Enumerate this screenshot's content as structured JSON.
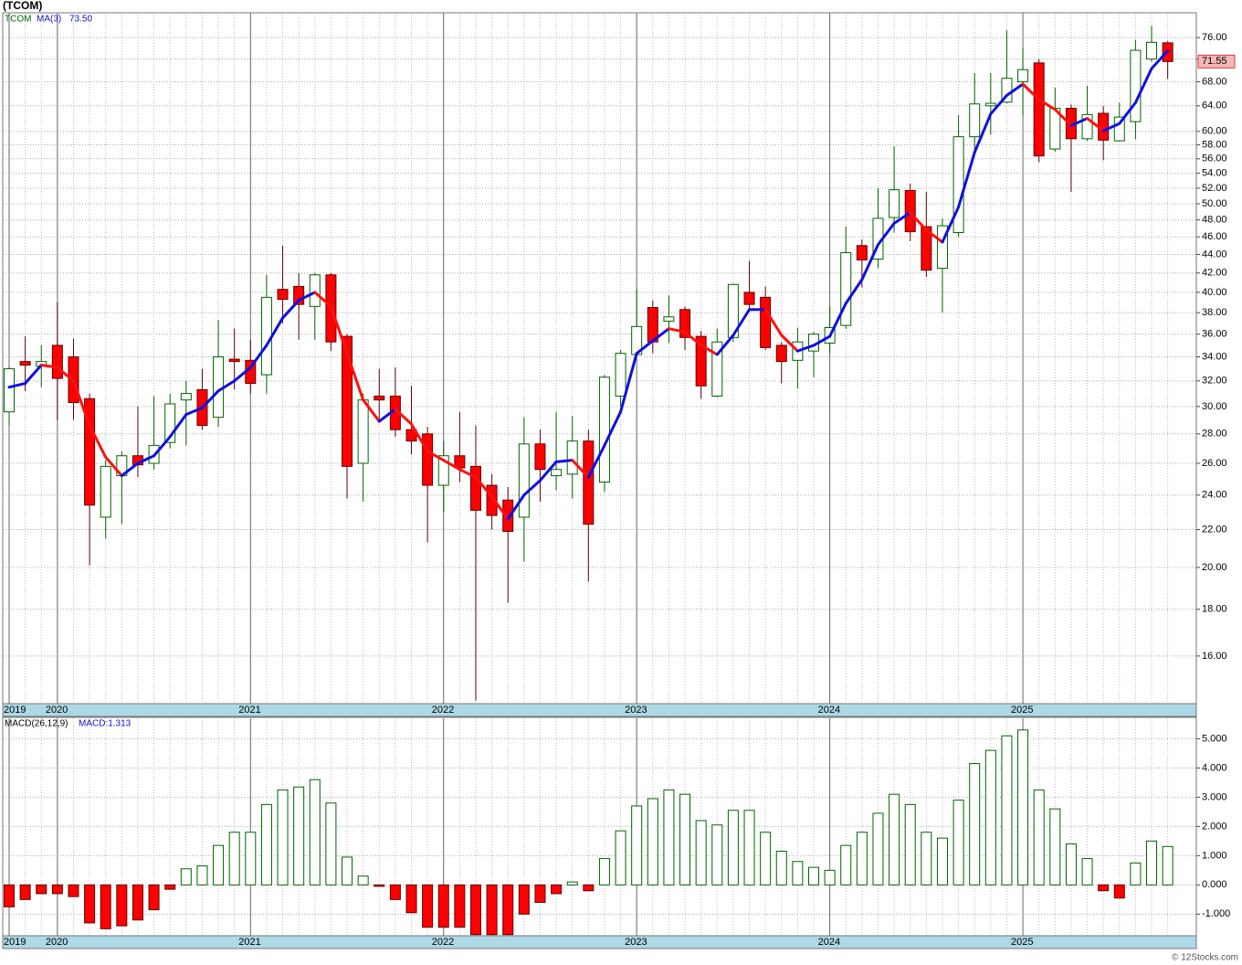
{
  "credit": "© 12Stocks.com",
  "chart_data": [
    {
      "type": "candlestick",
      "title": "(TCOM)",
      "ticker": "TCOM",
      "log_scale": true,
      "grid": true,
      "up_color": "#006400",
      "down_color": "#ff0000",
      "categories": [
        "2019",
        null,
        null,
        "2020",
        null,
        null,
        null,
        null,
        null,
        null,
        null,
        null,
        null,
        null,
        null,
        "2021",
        null,
        null,
        null,
        null,
        null,
        null,
        null,
        null,
        null,
        null,
        null,
        "2022",
        null,
        null,
        null,
        null,
        null,
        null,
        null,
        null,
        null,
        null,
        null,
        "2023",
        null,
        null,
        null,
        null,
        null,
        null,
        null,
        null,
        null,
        null,
        null,
        "2024",
        null,
        null,
        null,
        null,
        null,
        null,
        null,
        null,
        null,
        null,
        null,
        "2025",
        null,
        null,
        null,
        null,
        null,
        null,
        null,
        null,
        null
      ],
      "open": [
        29.6,
        33.6,
        33.2,
        35.0,
        34.0,
        30.6,
        22.7,
        25.2,
        26.5,
        26.0,
        27.4,
        30.5,
        31.3,
        29.2,
        33.8,
        33.7,
        32.5,
        40.3,
        40.6,
        38.6,
        41.8,
        35.8,
        26.0,
        30.8,
        30.8,
        28.3,
        28.0,
        24.6,
        26.5,
        25.8,
        24.6,
        23.7,
        22.7,
        27.3,
        25.2,
        25.3,
        27.5,
        24.8,
        30.8,
        34.2,
        38.5,
        37.2,
        38.3,
        35.8,
        30.8,
        35.7,
        40.0,
        39.5,
        35.0,
        33.7,
        34.5,
        35.2,
        36.8,
        45.0,
        43.5,
        48.3,
        51.7,
        47.2,
        42.5,
        46.5,
        59.2,
        64.0,
        64.6,
        68.0,
        71.3,
        57.4,
        63.6,
        58.9,
        62.8,
        58.6,
        61.5,
        72.0,
        75.0
      ],
      "high": [
        33.2,
        35.8,
        35.0,
        39.0,
        35.6,
        31.0,
        26.2,
        26.8,
        30.0,
        30.8,
        31.0,
        32.0,
        33.0,
        37.3,
        36.5,
        35.5,
        41.8,
        45.0,
        42.0,
        42.0,
        42.0,
        36.0,
        31.0,
        33.0,
        33.1,
        31.6,
        28.5,
        27.5,
        29.6,
        28.6,
        25.3,
        24.5,
        29.2,
        28.3,
        29.6,
        29.3,
        28.3,
        32.5,
        34.6,
        40.3,
        39.2,
        39.7,
        38.6,
        36.3,
        36.5,
        40.9,
        43.3,
        40.6,
        35.3,
        36.6,
        36.2,
        38.6,
        47.2,
        45.7,
        52.0,
        57.8,
        52.6,
        51.5,
        48.2,
        62.5,
        69.5,
        69.5,
        77.4,
        74.0,
        72.0,
        67.0,
        64.2,
        67.3,
        64.0,
        64.5,
        75.6,
        78.3,
        75.3
      ],
      "low": [
        28.6,
        31.2,
        31.5,
        29.0,
        29.0,
        20.1,
        21.5,
        22.3,
        25.1,
        25.6,
        27.0,
        27.2,
        28.3,
        28.5,
        31.3,
        31.0,
        31.0,
        37.0,
        35.5,
        35.5,
        34.5,
        23.8,
        23.6,
        28.8,
        27.8,
        26.6,
        21.3,
        23.0,
        24.8,
        14.3,
        22.0,
        18.3,
        20.3,
        23.6,
        24.3,
        23.8,
        19.3,
        24.2,
        30.0,
        34.0,
        34.3,
        35.2,
        34.6,
        30.6,
        30.7,
        35.3,
        38.3,
        34.6,
        31.8,
        31.4,
        32.3,
        34.3,
        36.5,
        40.5,
        42.5,
        46.5,
        45.5,
        41.6,
        38.0,
        46.0,
        56.5,
        59.5,
        64.4,
        62.5,
        55.5,
        57.0,
        51.5,
        58.6,
        55.8,
        58.5,
        58.8,
        71.5,
        68.5
      ],
      "close": [
        33.0,
        33.3,
        33.6,
        32.2,
        30.3,
        23.4,
        25.8,
        26.5,
        25.9,
        27.2,
        30.2,
        31.0,
        28.6,
        34.0,
        33.6,
        31.8,
        39.5,
        39.3,
        38.8,
        41.8,
        35.3,
        25.8,
        30.5,
        30.5,
        28.3,
        27.5,
        24.6,
        26.5,
        25.7,
        23.1,
        22.8,
        21.9,
        27.3,
        25.6,
        25.6,
        27.5,
        22.3,
        32.3,
        34.3,
        36.7,
        35.3,
        37.6,
        35.7,
        31.6,
        35.3,
        40.8,
        38.8,
        34.8,
        33.6,
        35.3,
        36.0,
        36.6,
        44.2,
        43.4,
        48.2,
        51.8,
        46.6,
        42.3,
        47.3,
        59.2,
        64.3,
        64.4,
        68.6,
        70.1,
        56.4,
        63.6,
        58.9,
        62.6,
        58.7,
        62.2,
        73.6,
        75.1,
        71.55
      ],
      "ma": {
        "name": "MA(3)",
        "current_label": "73.50",
        "up_color": "#1010e0",
        "down_color": "#ff1010",
        "values": [
          31.5,
          31.8,
          33.3,
          33.1,
          32.0,
          28.6,
          26.4,
          25.2,
          26.0,
          26.5,
          27.8,
          29.4,
          29.9,
          31.2,
          32.0,
          33.1,
          35.0,
          37.5,
          39.2,
          40.0,
          38.6,
          34.3,
          30.5,
          28.9,
          29.8,
          28.7,
          26.8,
          26.2,
          25.6,
          25.1,
          23.9,
          22.6,
          24.0,
          24.9,
          26.1,
          26.2,
          25.1,
          27.2,
          29.6,
          34.3,
          35.4,
          36.5,
          36.2,
          35.0,
          34.2,
          35.9,
          38.3,
          38.3,
          35.9,
          34.5,
          35.0,
          35.8,
          38.9,
          41.3,
          45.1,
          47.6,
          48.9,
          46.8,
          45.4,
          49.6,
          56.9,
          62.7,
          65.7,
          67.6,
          65.0,
          63.4,
          60.9,
          62.0,
          60.1,
          61.2,
          64.5,
          70.3,
          73.5
        ]
      },
      "ylim": [
        14.19,
        80.9
      ],
      "yticks": [
        {
          "value": 16,
          "label": "16.00"
        },
        {
          "value": 18,
          "label": "18.00"
        },
        {
          "value": 20,
          "label": "20.00"
        },
        {
          "value": 22,
          "label": "22.00"
        },
        {
          "value": 24,
          "label": "24.00"
        },
        {
          "value": 26,
          "label": "26.00"
        },
        {
          "value": 28,
          "label": "28.00"
        },
        {
          "value": 30,
          "label": "30.00"
        },
        {
          "value": 32,
          "label": "32.00"
        },
        {
          "value": 34,
          "label": "34.00"
        },
        {
          "value": 36,
          "label": "36.00"
        },
        {
          "value": 38,
          "label": "38.00"
        },
        {
          "value": 40,
          "label": "40.00"
        },
        {
          "value": 42,
          "label": "42.00"
        },
        {
          "value": 44,
          "label": "44.00"
        },
        {
          "value": 46,
          "label": "46.00"
        },
        {
          "value": 48,
          "label": "48.00"
        },
        {
          "value": 50,
          "label": "50.00"
        },
        {
          "value": 52,
          "label": "52.00"
        },
        {
          "value": 54,
          "label": "54.00"
        },
        {
          "value": 56,
          "label": "56.00"
        },
        {
          "value": 58,
          "label": "58.00"
        },
        {
          "value": 60,
          "label": "60.00"
        },
        {
          "value": 64,
          "label": "64.00"
        },
        {
          "value": 68,
          "label": "68.00"
        },
        {
          "value": 72,
          "label": "72.00"
        },
        {
          "value": 76,
          "label": "76.00"
        }
      ]
    },
    {
      "type": "bar",
      "title": "MACD(26,12,9)",
      "current_label": "MACD:1.313",
      "grid": true,
      "up_color": "#006400",
      "down_color": "#ff0000",
      "values": [
        -0.75,
        -0.5,
        -0.3,
        -0.3,
        -0.4,
        -1.3,
        -1.5,
        -1.4,
        -1.2,
        -0.85,
        -0.15,
        0.55,
        0.65,
        1.35,
        1.8,
        1.8,
        2.75,
        3.25,
        3.35,
        3.6,
        2.8,
        0.95,
        0.3,
        -0.05,
        -0.5,
        -0.95,
        -1.45,
        -1.45,
        -1.45,
        -1.7,
        -1.7,
        -1.7,
        -1.0,
        -0.6,
        -0.3,
        0.1,
        -0.2,
        0.9,
        1.85,
        2.7,
        2.95,
        3.25,
        3.1,
        2.2,
        2.05,
        2.55,
        2.55,
        1.8,
        1.15,
        0.8,
        0.6,
        0.5,
        1.35,
        1.8,
        2.45,
        3.1,
        2.75,
        1.8,
        1.6,
        2.9,
        4.15,
        4.6,
        5.1,
        5.3,
        3.25,
        2.6,
        1.4,
        0.9,
        -0.2,
        -0.45,
        0.75,
        1.5,
        1.313
      ],
      "ylim": [
        -1.74,
        5.7
      ],
      "yticks": [
        {
          "value": -1,
          "label": "-1.000"
        },
        {
          "value": 0,
          "label": "0.000"
        },
        {
          "value": 1,
          "label": "1.000"
        },
        {
          "value": 2,
          "label": "2.000"
        },
        {
          "value": 3,
          "label": "3.000"
        },
        {
          "value": 4,
          "label": "4.000"
        },
        {
          "value": 5,
          "label": "5.000"
        }
      ]
    }
  ]
}
